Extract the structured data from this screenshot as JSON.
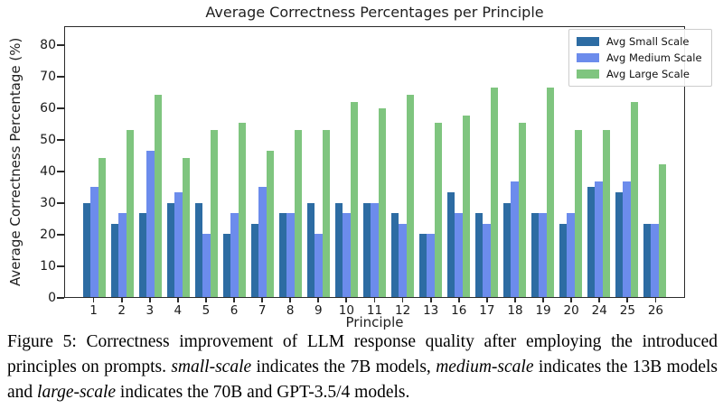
{
  "chart_data": {
    "type": "bar",
    "title": "Average Correctness Percentages per Principle",
    "xlabel": "Principle",
    "ylabel": "Average Correctness Percentage (%)",
    "categories": [
      "1",
      "2",
      "3",
      "4",
      "5",
      "6",
      "7",
      "8",
      "9",
      "10",
      "11",
      "12",
      "13",
      "16",
      "17",
      "18",
      "19",
      "20",
      "24",
      "25",
      "26"
    ],
    "series": [
      {
        "name": "Avg Small Scale",
        "color": "#2d6ca3",
        "values": [
          30,
          23.3,
          26.7,
          30,
          30,
          20,
          23.3,
          26.7,
          30,
          30,
          30,
          26.7,
          20,
          33.3,
          26.7,
          30,
          26.7,
          23.3,
          35,
          33.3,
          23.3
        ]
      },
      {
        "name": "Avg Medium Scale",
        "color": "#6c8cec",
        "values": [
          35,
          26.7,
          46.7,
          33.3,
          20,
          26.7,
          35,
          26.7,
          20,
          26.7,
          30,
          23.3,
          20,
          26.7,
          23.3,
          36.7,
          26.7,
          26.7,
          36.7,
          36.7,
          23.3
        ]
      },
      {
        "name": "Avg Large Scale",
        "color": "#7fc57f",
        "values": [
          44.4,
          53.3,
          64.4,
          44.4,
          53.3,
          55.6,
          46.7,
          53.3,
          53.3,
          62.2,
          60,
          64.4,
          55.6,
          57.8,
          66.7,
          55.6,
          66.7,
          53.3,
          53.3,
          62.2,
          42.2
        ]
      }
    ],
    "y_ticks": [
      0,
      10,
      20,
      30,
      40,
      50,
      60,
      70,
      80
    ],
    "ylim": [
      0,
      86
    ],
    "grid": false,
    "legend_position": "upper right"
  },
  "caption": {
    "segments": [
      {
        "text": "Figure 5: Correctness improvement of LLM response quality after employing the introduced principles on prompts. ",
        "italic": false
      },
      {
        "text": "small-scale",
        "italic": true
      },
      {
        "text": " indicates the 7B models, ",
        "italic": false
      },
      {
        "text": "medium-scale",
        "italic": true
      },
      {
        "text": " indicates the 13B models and ",
        "italic": false
      },
      {
        "text": "large-scale",
        "italic": true
      },
      {
        "text": " indicates the 70B and GPT-3.5/4 models.",
        "italic": false
      }
    ]
  }
}
